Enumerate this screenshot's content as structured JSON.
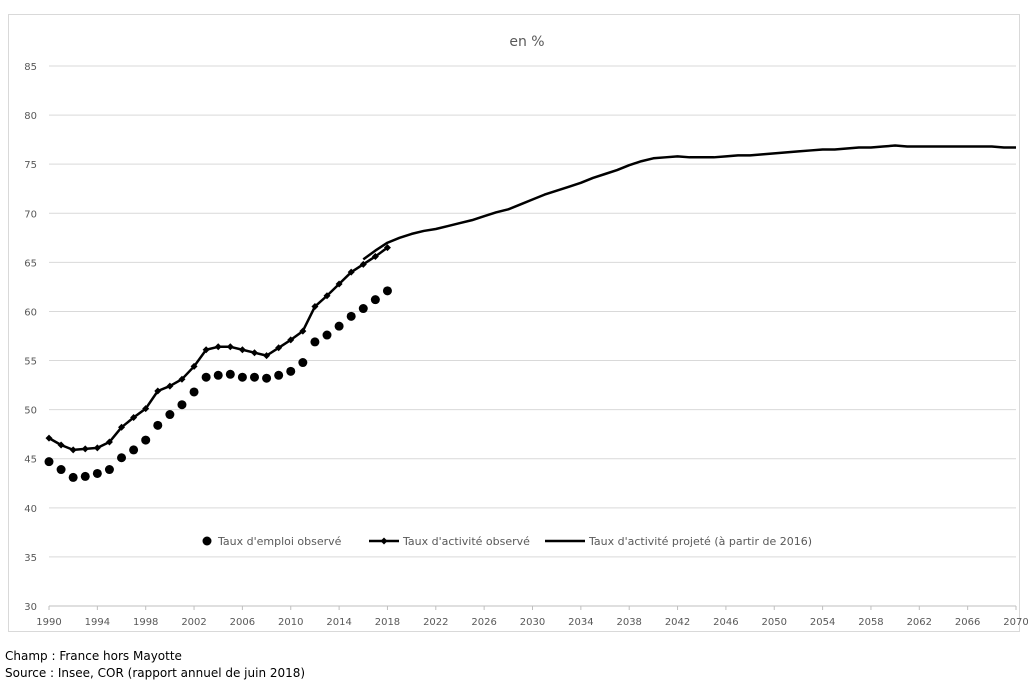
{
  "chart_data": {
    "type": "line",
    "title": "en %",
    "xlabel": "",
    "ylabel": "",
    "xlim": [
      1990,
      2070
    ],
    "ylim": [
      30,
      85
    ],
    "x_ticks": [
      1990,
      1994,
      1998,
      2002,
      2006,
      2010,
      2014,
      2018,
      2022,
      2026,
      2030,
      2034,
      2038,
      2042,
      2046,
      2050,
      2054,
      2058,
      2062,
      2066,
      2070
    ],
    "y_ticks": [
      30,
      35,
      40,
      45,
      50,
      55,
      60,
      65,
      70,
      75,
      80,
      85
    ],
    "grid": "horizontal",
    "legend_position": "inside-bottom",
    "series": [
      {
        "name": "Taux d'emploi observé",
        "style": "markers-circle",
        "color": "#000000",
        "points": [
          [
            1990,
            44.7
          ],
          [
            1991,
            43.9
          ],
          [
            1992,
            43.1
          ],
          [
            1993,
            43.2
          ],
          [
            1994,
            43.5
          ],
          [
            1995,
            43.9
          ],
          [
            1996,
            45.1
          ],
          [
            1997,
            45.9
          ],
          [
            1998,
            46.9
          ],
          [
            1999,
            48.4
          ],
          [
            2000,
            49.5
          ],
          [
            2001,
            50.5
          ],
          [
            2002,
            51.8
          ],
          [
            2003,
            53.3
          ],
          [
            2004,
            53.5
          ],
          [
            2005,
            53.6
          ],
          [
            2006,
            53.3
          ],
          [
            2007,
            53.3
          ],
          [
            2008,
            53.2
          ],
          [
            2009,
            53.5
          ],
          [
            2010,
            53.9
          ],
          [
            2011,
            54.8
          ],
          [
            2012,
            56.9
          ],
          [
            2013,
            57.6
          ],
          [
            2014,
            58.5
          ],
          [
            2015,
            59.5
          ],
          [
            2016,
            60.3
          ],
          [
            2017,
            61.2
          ],
          [
            2018,
            62.1
          ]
        ]
      },
      {
        "name": "Taux d'activité observé",
        "style": "line-diamond",
        "color": "#000000",
        "points": [
          [
            1990,
            47.1
          ],
          [
            1991,
            46.4
          ],
          [
            1992,
            45.9
          ],
          [
            1993,
            46.0
          ],
          [
            1994,
            46.1
          ],
          [
            1995,
            46.7
          ],
          [
            1996,
            48.2
          ],
          [
            1997,
            49.2
          ],
          [
            1998,
            50.1
          ],
          [
            1999,
            51.9
          ],
          [
            2000,
            52.4
          ],
          [
            2001,
            53.1
          ],
          [
            2002,
            54.4
          ],
          [
            2003,
            56.1
          ],
          [
            2004,
            56.4
          ],
          [
            2005,
            56.4
          ],
          [
            2006,
            56.1
          ],
          [
            2007,
            55.8
          ],
          [
            2008,
            55.5
          ],
          [
            2009,
            56.3
          ],
          [
            2010,
            57.1
          ],
          [
            2011,
            58.0
          ],
          [
            2012,
            60.5
          ],
          [
            2013,
            61.6
          ],
          [
            2014,
            62.8
          ],
          [
            2015,
            64.0
          ],
          [
            2016,
            64.8
          ],
          [
            2017,
            65.6
          ],
          [
            2018,
            66.5
          ]
        ]
      },
      {
        "name": "Taux d'activité projeté (à partir de 2016)",
        "style": "line",
        "color": "#000000",
        "points": [
          [
            2016,
            65.3
          ],
          [
            2017,
            66.2
          ],
          [
            2018,
            67.0
          ],
          [
            2019,
            67.5
          ],
          [
            2020,
            67.9
          ],
          [
            2021,
            68.2
          ],
          [
            2022,
            68.4
          ],
          [
            2023,
            68.7
          ],
          [
            2024,
            69.0
          ],
          [
            2025,
            69.3
          ],
          [
            2026,
            69.7
          ],
          [
            2027,
            70.1
          ],
          [
            2028,
            70.4
          ],
          [
            2029,
            70.9
          ],
          [
            2030,
            71.4
          ],
          [
            2031,
            71.9
          ],
          [
            2032,
            72.3
          ],
          [
            2033,
            72.7
          ],
          [
            2034,
            73.1
          ],
          [
            2035,
            73.6
          ],
          [
            2036,
            74.0
          ],
          [
            2037,
            74.4
          ],
          [
            2038,
            74.9
          ],
          [
            2039,
            75.3
          ],
          [
            2040,
            75.6
          ],
          [
            2041,
            75.7
          ],
          [
            2042,
            75.8
          ],
          [
            2043,
            75.7
          ],
          [
            2044,
            75.7
          ],
          [
            2045,
            75.7
          ],
          [
            2046,
            75.8
          ],
          [
            2047,
            75.9
          ],
          [
            2048,
            75.9
          ],
          [
            2049,
            76.0
          ],
          [
            2050,
            76.1
          ],
          [
            2051,
            76.2
          ],
          [
            2052,
            76.3
          ],
          [
            2053,
            76.4
          ],
          [
            2054,
            76.5
          ],
          [
            2055,
            76.5
          ],
          [
            2056,
            76.6
          ],
          [
            2057,
            76.7
          ],
          [
            2058,
            76.7
          ],
          [
            2059,
            76.8
          ],
          [
            2060,
            76.9
          ],
          [
            2061,
            76.8
          ],
          [
            2062,
            76.8
          ],
          [
            2063,
            76.8
          ],
          [
            2064,
            76.8
          ],
          [
            2065,
            76.8
          ],
          [
            2066,
            76.8
          ],
          [
            2067,
            76.8
          ],
          [
            2068,
            76.8
          ],
          [
            2069,
            76.7
          ],
          [
            2070,
            76.7
          ]
        ]
      }
    ]
  },
  "footer": {
    "champ": "Champ : France hors Mayotte",
    "source": "Source : Insee, COR (rapport annuel de juin 2018)"
  }
}
